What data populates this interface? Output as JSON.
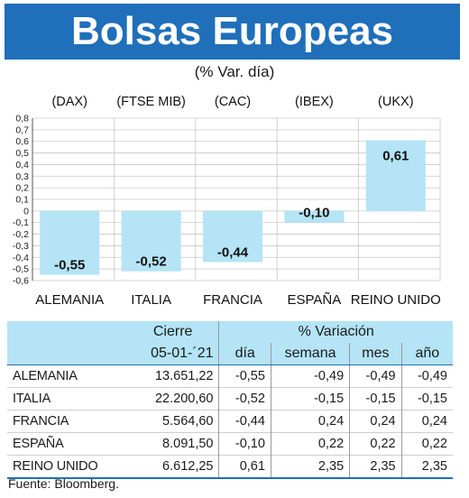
{
  "header": {
    "title": "Bolsas Europeas",
    "subtitle": "(% Var. día)"
  },
  "chart_data": {
    "type": "bar",
    "categories": [
      "ALEMANIA",
      "ITALIA",
      "FRANCIA",
      "ESPAÑA",
      "REINO UNIDO"
    ],
    "index_labels": [
      "(DAX)",
      "(FTSE MIB)",
      "(CAC)",
      "(IBEX)",
      "(UKX)"
    ],
    "values": [
      -0.55,
      -0.52,
      -0.44,
      -0.1,
      0.61
    ],
    "value_labels": [
      "-0,55",
      "-0,52",
      "-0,44",
      "-0,10",
      "0,61"
    ],
    "yticks": [
      "0,8",
      "0,7",
      "0,6",
      "0,5",
      "0,4",
      "0,3",
      "0,2",
      "0,1",
      "0",
      "-0,1",
      "-0,2",
      "-0,3",
      "-0,4",
      "-0,5",
      "-0,6"
    ],
    "ylim": [
      -0.6,
      0.8
    ],
    "grid": true,
    "bar_color": "#b4e4f6"
  },
  "table": {
    "header_cierre": "Cierre",
    "header_variacion": "% Variación",
    "date": "05-01-´21",
    "sub_headers": [
      "día",
      "semana",
      "mes",
      "año"
    ],
    "rows": [
      {
        "country": "ALEMANIA",
        "close": "13.651,22",
        "dia": "-0,55",
        "semana": "-0,49",
        "mes": "-0,49",
        "anio": "-0,49"
      },
      {
        "country": "ITALIA",
        "close": "22.200,60",
        "dia": "-0,52",
        "semana": "-0,15",
        "mes": "-0,15",
        "anio": "-0,15"
      },
      {
        "country": "FRANCIA",
        "close": "5.564,60",
        "dia": "-0,44",
        "semana": "0,24",
        "mes": "0,24",
        "anio": "0,24"
      },
      {
        "country": "ESPAÑA",
        "close": "8.091,50",
        "dia": "-0,10",
        "semana": "0,22",
        "mes": "0,22",
        "anio": "0,22"
      },
      {
        "country": "REINO UNIDO",
        "close": "6.612,25",
        "dia": "0,61",
        "semana": "2,35",
        "mes": "2,35",
        "anio": "2,35"
      }
    ]
  },
  "source": "Fuente: Bloomberg."
}
